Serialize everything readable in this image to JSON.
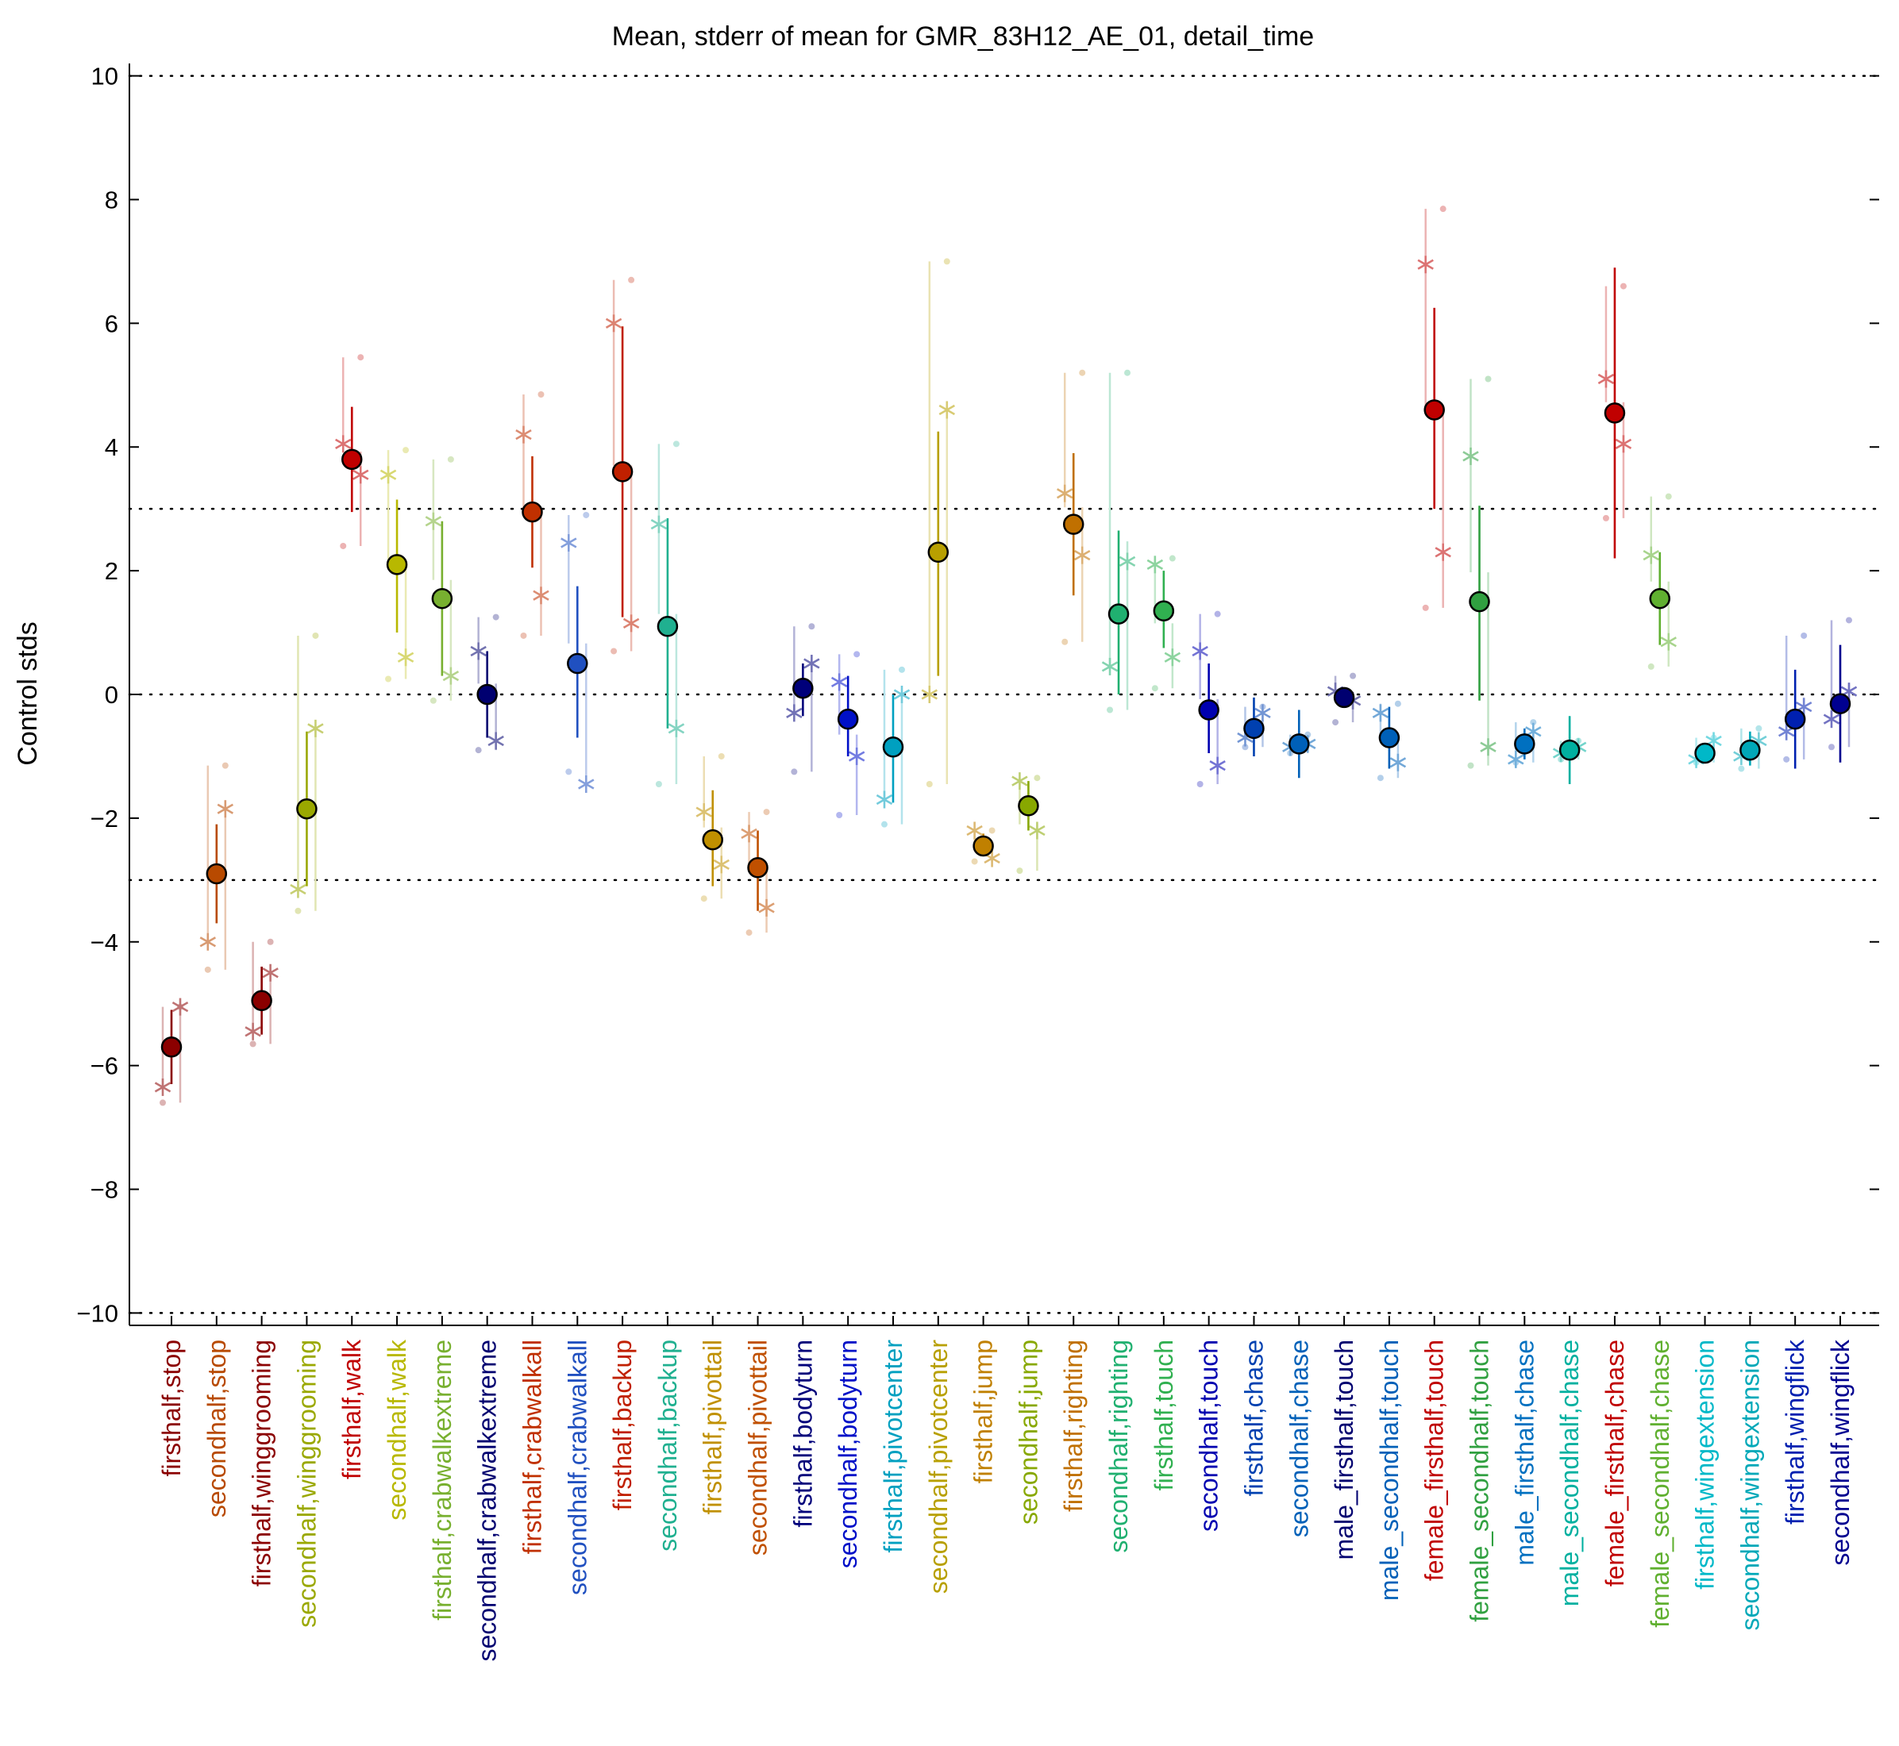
{
  "chart_data": {
    "type": "scatter",
    "title": "Mean, stderr of mean for GMR_83H12_AE_01, detail_time",
    "ylabel": "Control stds",
    "xlabel": "",
    "ylim": [
      -10.2,
      10.2
    ],
    "yticks": [
      10,
      8,
      6,
      4,
      2,
      0,
      -2,
      -4,
      -6,
      -8,
      -10
    ],
    "ytick_labels": [
      "10",
      "8",
      "6",
      "4",
      "2",
      "0",
      "−2",
      "−4",
      "−6",
      "−8",
      "−10"
    ],
    "reference_lines": [
      10,
      3,
      0,
      -3,
      -10
    ],
    "grid": false,
    "legend": "none",
    "categories": [
      {
        "label": "firsthalf,stop",
        "color": "#8b0000",
        "mean": -5.7,
        "err_low": -6.3,
        "err_high": -5.1,
        "stars": [
          -6.35,
          -5.05
        ],
        "dots": [
          -6.6,
          -5.05
        ]
      },
      {
        "label": "secondhalf,stop",
        "color": "#b84a00",
        "mean": -2.9,
        "err_low": -3.7,
        "err_high": -2.1,
        "stars": [
          -4.0,
          -1.85
        ],
        "dots": [
          -4.45,
          -1.15
        ]
      },
      {
        "label": "firsthalf,winggrooming",
        "color": "#8b0000",
        "mean": -4.95,
        "err_low": -5.5,
        "err_high": -4.4,
        "stars": [
          -5.45,
          -4.5
        ],
        "dots": [
          -5.65,
          -4.0
        ]
      },
      {
        "label": "secondhalf,winggrooming",
        "color": "#9aa800",
        "mean": -1.85,
        "err_low": -3.1,
        "err_high": -0.6,
        "stars": [
          -3.15,
          -0.55
        ],
        "dots": [
          -3.5,
          0.95
        ]
      },
      {
        "label": "firsthalf,walk",
        "color": "#c00000",
        "mean": 3.8,
        "err_low": 2.95,
        "err_high": 4.65,
        "stars": [
          4.05,
          3.55
        ],
        "dots": [
          2.4,
          5.45
        ]
      },
      {
        "label": "secondhalf,walk",
        "color": "#b8b800",
        "mean": 2.1,
        "err_low": 1.0,
        "err_high": 3.15,
        "stars": [
          3.55,
          0.6
        ],
        "dots": [
          0.25,
          3.95
        ]
      },
      {
        "label": "firsthalf,crabwalkextreme",
        "color": "#78b030",
        "mean": 1.55,
        "err_low": 0.3,
        "err_high": 2.8,
        "stars": [
          2.8,
          0.3
        ],
        "dots": [
          -0.1,
          3.8
        ]
      },
      {
        "label": "secondhalf,crabwalkextreme",
        "color": "#000070",
        "mean": 0.0,
        "err_low": -0.7,
        "err_high": 0.7,
        "stars": [
          0.7,
          -0.75
        ],
        "dots": [
          -0.9,
          1.25
        ]
      },
      {
        "label": "firsthalf,crabwalkall",
        "color": "#c03000",
        "mean": 2.95,
        "err_low": 2.05,
        "err_high": 3.85,
        "stars": [
          4.2,
          1.6
        ],
        "dots": [
          0.95,
          4.85
        ]
      },
      {
        "label": "secondhalf,crabwalkall",
        "color": "#2050c0",
        "mean": 0.5,
        "err_low": -0.7,
        "err_high": 1.75,
        "stars": [
          2.45,
          -1.45
        ],
        "dots": [
          -1.25,
          2.9
        ]
      },
      {
        "label": "firsthalf,backup",
        "color": "#c02000",
        "mean": 3.6,
        "err_low": 1.25,
        "err_high": 5.95,
        "stars": [
          6.0,
          1.15
        ],
        "dots": [
          0.7,
          6.7
        ]
      },
      {
        "label": "secondhalf,backup",
        "color": "#20b090",
        "mean": 1.1,
        "err_low": -0.55,
        "err_high": 2.85,
        "stars": [
          2.75,
          -0.55
        ],
        "dots": [
          -1.45,
          4.05
        ]
      },
      {
        "label": "firsthalf,pivottail",
        "color": "#c09000",
        "mean": -2.35,
        "err_low": -3.1,
        "err_high": -1.55,
        "stars": [
          -1.9,
          -2.75
        ],
        "dots": [
          -3.3,
          -1.0
        ]
      },
      {
        "label": "secondhalf,pivottail",
        "color": "#c05000",
        "mean": -2.8,
        "err_low": -3.5,
        "err_high": -2.2,
        "stars": [
          -2.25,
          -3.45
        ],
        "dots": [
          -3.85,
          -1.9
        ]
      },
      {
        "label": "firsthalf,bodyturn",
        "color": "#00007a",
        "mean": 0.1,
        "err_low": -0.35,
        "err_high": 0.5,
        "stars": [
          -0.3,
          0.5
        ],
        "dots": [
          -1.25,
          1.1
        ]
      },
      {
        "label": "secondhalf,bodyturn",
        "color": "#0010c8",
        "mean": -0.4,
        "err_low": -1.0,
        "err_high": 0.3,
        "stars": [
          0.2,
          -1.0
        ],
        "dots": [
          -1.95,
          0.65
        ]
      },
      {
        "label": "firsthalf,pivotcenter",
        "color": "#00a0c0",
        "mean": -0.85,
        "err_low": -1.75,
        "err_high": 0.0,
        "stars": [
          -1.7,
          0.0
        ],
        "dots": [
          -2.1,
          0.4
        ]
      },
      {
        "label": "secondhalf,pivotcenter",
        "color": "#b8a000",
        "mean": 2.3,
        "err_low": 0.3,
        "err_high": 4.25,
        "stars": [
          0.0,
          4.6
        ],
        "dots": [
          -1.45,
          7.0
        ]
      },
      {
        "label": "firsthalf,jump",
        "color": "#c08000",
        "mean": -2.45,
        "err_low": -2.6,
        "err_high": -2.25,
        "stars": [
          -2.2,
          -2.65
        ],
        "dots": [
          -2.7,
          -2.2
        ]
      },
      {
        "label": "secondhalf,jump",
        "color": "#88a800",
        "mean": -1.8,
        "err_low": -2.2,
        "err_high": -1.4,
        "stars": [
          -1.4,
          -2.2
        ],
        "dots": [
          -2.85,
          -1.35
        ]
      },
      {
        "label": "firsthalf,righting",
        "color": "#c07000",
        "mean": 2.75,
        "err_low": 1.6,
        "err_high": 3.9,
        "stars": [
          3.25,
          2.25
        ],
        "dots": [
          0.85,
          5.2
        ]
      },
      {
        "label": "secondhalf,righting",
        "color": "#20b070",
        "mean": 1.3,
        "err_low": 0.0,
        "err_high": 2.65,
        "stars": [
          0.45,
          2.15
        ],
        "dots": [
          -0.25,
          5.2
        ]
      },
      {
        "label": "firsthalf,touch",
        "color": "#30b050",
        "mean": 1.35,
        "err_low": 0.75,
        "err_high": 2.0,
        "stars": [
          2.1,
          0.6
        ],
        "dots": [
          0.1,
          2.2
        ]
      },
      {
        "label": "secondhalf,touch",
        "color": "#0000b0",
        "mean": -0.25,
        "err_low": -0.95,
        "err_high": 0.5,
        "stars": [
          0.7,
          -1.15
        ],
        "dots": [
          -1.45,
          1.3
        ]
      },
      {
        "label": "firsthalf,chase",
        "color": "#0040b0",
        "mean": -0.55,
        "err_low": -1.0,
        "err_high": -0.05,
        "stars": [
          -0.7,
          -0.3
        ],
        "dots": [
          -0.85,
          -0.2
        ]
      },
      {
        "label": "secondhalf,chase",
        "color": "#0060b8",
        "mean": -0.8,
        "err_low": -1.35,
        "err_high": -0.25,
        "stars": [
          -0.85,
          -0.8
        ],
        "dots": [
          -0.95,
          -0.65
        ]
      },
      {
        "label": "male_firsthalf,touch",
        "color": "#000070",
        "mean": -0.05,
        "err_low": -0.2,
        "err_high": 0.1,
        "stars": [
          0.05,
          -0.1
        ],
        "dots": [
          -0.45,
          0.3
        ]
      },
      {
        "label": "male_secondhalf,touch",
        "color": "#0060b8",
        "mean": -0.7,
        "err_low": -1.2,
        "err_high": -0.2,
        "stars": [
          -0.3,
          -1.1
        ],
        "dots": [
          -1.35,
          -0.15
        ]
      },
      {
        "label": "female_firsthalf,touch",
        "color": "#c00000",
        "mean": 4.6,
        "err_low": 3.0,
        "err_high": 6.25,
        "stars": [
          6.95,
          2.3
        ],
        "dots": [
          1.4,
          7.85
        ]
      },
      {
        "label": "female_secondhalf,touch",
        "color": "#30a040",
        "mean": 1.5,
        "err_low": -0.1,
        "err_high": 3.05,
        "stars": [
          3.85,
          -0.85
        ],
        "dots": [
          -1.15,
          5.1
        ]
      },
      {
        "label": "male_firsthalf,chase",
        "color": "#0070c0",
        "mean": -0.8,
        "err_low": -1.05,
        "err_high": -0.55,
        "stars": [
          -1.05,
          -0.6
        ],
        "dots": [
          -1.1,
          -0.45
        ]
      },
      {
        "label": "male_secondhalf,chase",
        "color": "#00b0a0",
        "mean": -0.9,
        "err_low": -1.45,
        "err_high": -0.35,
        "stars": [
          -0.95,
          -0.85
        ],
        "dots": [
          -1.05,
          -0.75
        ]
      },
      {
        "label": "female_firsthalf,chase",
        "color": "#c00000",
        "mean": 4.55,
        "err_low": 2.2,
        "err_high": 6.9,
        "stars": [
          5.1,
          4.05
        ],
        "dots": [
          2.85,
          6.6
        ]
      },
      {
        "label": "female_secondhalf,chase",
        "color": "#60b030",
        "mean": 1.55,
        "err_low": 0.8,
        "err_high": 2.3,
        "stars": [
          2.25,
          0.85
        ],
        "dots": [
          0.45,
          3.2
        ]
      },
      {
        "label": "firsthalf,wingextension",
        "color": "#00b8c8",
        "mean": -0.95,
        "err_low": -1.05,
        "err_high": -0.8,
        "stars": [
          -1.05,
          -0.75
        ],
        "dots": [
          -1.1,
          -0.7
        ]
      },
      {
        "label": "secondhalf,wingextension",
        "color": "#00a8b8",
        "mean": -0.9,
        "err_low": -1.15,
        "err_high": -0.6,
        "stars": [
          -1.0,
          -0.75
        ],
        "dots": [
          -1.2,
          -0.55
        ]
      },
      {
        "label": "firsthalf,wingflick",
        "color": "#0020b0",
        "mean": -0.4,
        "err_low": -1.2,
        "err_high": 0.4,
        "stars": [
          -0.6,
          -0.2
        ],
        "dots": [
          -1.05,
          0.95
        ]
      },
      {
        "label": "secondhalf,wingflick",
        "color": "#000090",
        "mean": -0.15,
        "err_low": -1.1,
        "err_high": 0.8,
        "stars": [
          -0.4,
          0.05
        ],
        "dots": [
          -0.85,
          1.2
        ]
      }
    ]
  }
}
